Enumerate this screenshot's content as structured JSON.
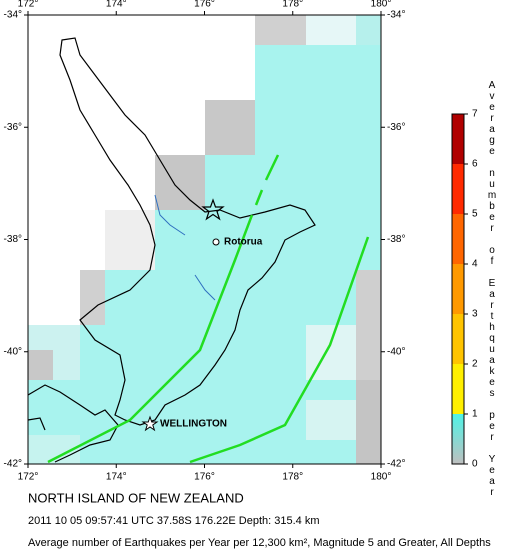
{
  "map": {
    "title": "NORTH ISLAND OF NEW ZEALAND",
    "subtitle": "2011 10 05 09:57:41 UTC 37.58S 176.22E Depth: 315.4 km",
    "caption": "Average number of Earthquakes per Year per 12,300 km², Magnitude 5 and Greater, All Depths",
    "lon_labels": [
      "172°",
      "174°",
      "176°",
      "178°",
      "180°"
    ],
    "lat_labels": [
      "-34°",
      "-36°",
      "-38°",
      "-40°",
      "-42°"
    ],
    "places": [
      "Rotorua",
      "WELLINGTON"
    ],
    "colorbar": {
      "label": "Average number of Earthquakes per Year",
      "ticks": [
        "0",
        "1",
        "2",
        "3",
        "4",
        "5",
        "6",
        "7"
      ]
    }
  }
}
